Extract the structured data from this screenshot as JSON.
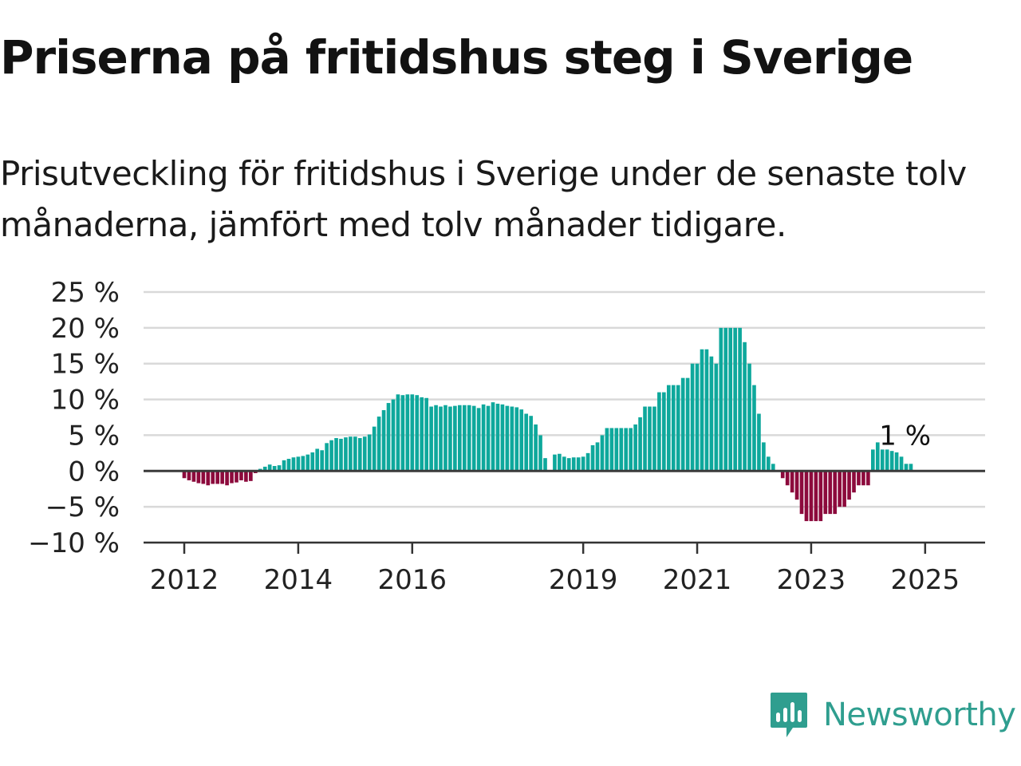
{
  "title": "Priserna på fritidshus steg i Sverige",
  "subtitle": "Prisutveckling för fritidshus i Sverige under de senaste tolv månaderna, jämfört med tolv månader tidigare.",
  "brand": {
    "name": "Newsworthy",
    "color": "#2f9e8f",
    "icon": "newsworthy-logo-icon"
  },
  "chart_data": {
    "type": "bar",
    "title": "",
    "xlabel": "",
    "ylabel": "",
    "ylim": [
      -10,
      25
    ],
    "yticks": [
      25,
      20,
      15,
      10,
      5,
      0,
      -5,
      -10
    ],
    "ytick_labels": [
      "25 %",
      "20 %",
      "15 %",
      "10 %",
      "5 %",
      "0 %",
      "−5 %",
      "−10 %"
    ],
    "x_tick_labels": [
      "2012",
      "2014",
      "2016",
      "2019",
      "2021",
      "2023",
      "2025"
    ],
    "x_tick_years": [
      2012,
      2014,
      2016,
      2019,
      2021,
      2023,
      2025
    ],
    "grid": true,
    "colors": {
      "positive": "#0ea89c",
      "negative": "#8c0a3c",
      "grid": "#d9d9d9",
      "axis": "#333333"
    },
    "series": [
      {
        "start": "2012-01",
        "frequency": "monthly",
        "values": [
          -1.0,
          -1.3,
          -1.5,
          -1.7,
          -1.8,
          -2.0,
          -1.8,
          -1.8,
          -1.8,
          -2.0,
          -1.7,
          -1.6,
          -1.3,
          -1.5,
          -1.4,
          -0.3,
          0.3,
          0.6,
          0.9,
          0.7,
          0.8,
          1.5,
          1.7,
          1.9,
          2.0,
          2.1,
          2.3,
          2.6,
          3.1,
          2.9,
          3.9,
          4.3,
          4.6,
          4.5,
          4.7,
          4.8,
          4.8,
          4.6,
          4.8,
          5.1,
          6.2,
          7.6,
          8.5,
          9.5,
          10.0,
          10.7,
          10.6,
          10.7,
          10.7,
          10.6,
          10.3,
          10.2,
          9.0,
          9.2,
          9.0,
          9.2,
          9.0,
          9.1,
          9.2,
          9.2,
          9.2,
          9.1,
          8.8,
          9.3,
          9.1,
          9.6,
          9.4,
          9.3,
          9.1,
          9.0,
          8.9,
          8.6,
          8.0,
          7.7,
          6.5,
          5.0,
          1.8,
          0.1,
          2.3,
          2.4,
          2.0,
          1.8,
          1.9,
          1.9,
          2.0,
          2.5,
          3.6,
          4.0,
          5.0,
          6.0,
          6.0,
          6.0,
          6.0,
          6.0,
          6.0,
          6.5,
          7.5,
          9.0,
          9.0,
          9.0,
          11.0,
          11.0,
          12.0,
          12.0,
          12.0,
          13.0,
          13.0,
          15.0,
          15.0,
          17.0,
          17.0,
          16.0,
          15.0,
          20.0,
          20.0,
          20.0,
          20.0,
          20.0,
          18.0,
          15.0,
          12.0,
          8.0,
          4.0,
          2.0,
          1.0,
          0.0,
          -1.0,
          -2.0,
          -3.0,
          -4.0,
          -6.0,
          -7.0,
          -7.0,
          -7.0,
          -7.0,
          -6.0,
          -6.0,
          -6.0,
          -5.0,
          -5.0,
          -4.0,
          -3.0,
          -2.0,
          -2.0,
          -2.0,
          3.0,
          4.0,
          3.0,
          3.0,
          2.8,
          2.6,
          2.0,
          1.0,
          1.0
        ]
      }
    ],
    "annotation": {
      "text": "1 %",
      "value": 1
    }
  }
}
